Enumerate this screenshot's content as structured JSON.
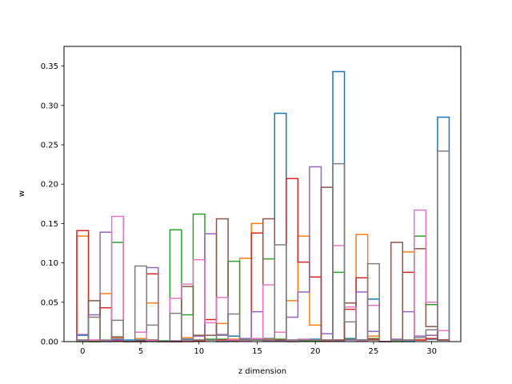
{
  "chart_data": {
    "type": "step",
    "xlabel": "z dimension",
    "ylabel": "w",
    "xlim": [
      -1.6,
      32.5
    ],
    "ylim": [
      0,
      0.375
    ],
    "grid": false,
    "xticks": [
      0,
      5,
      10,
      15,
      20,
      25,
      30
    ],
    "xtick_labels": [
      "0",
      "5",
      "10",
      "15",
      "20",
      "25",
      "30"
    ],
    "yticks": [
      0.0,
      0.05,
      0.1,
      0.15,
      0.2,
      0.25,
      0.3,
      0.35
    ],
    "ytick_labels": [
      "0.00",
      "0.05",
      "0.10",
      "0.15",
      "0.20",
      "0.25",
      "0.30",
      "0.35"
    ],
    "series": [
      {
        "color": "#1f77b4",
        "values": [
          0.008,
          0,
          0,
          0.003,
          0.002,
          0.002,
          0.001,
          0,
          0,
          0.003,
          0.002,
          0.002,
          0,
          0.007,
          0.002,
          0.003,
          0.004,
          0.29,
          0.002,
          0.002,
          0.003,
          0.002,
          0.343,
          0.004,
          0.002,
          0.054,
          0,
          0.002,
          0,
          0.002,
          0.003,
          0.285
        ]
      },
      {
        "color": "#ff7f0e",
        "values": [
          0.134,
          0,
          0.061,
          0.005,
          0,
          0.004,
          0.049,
          0,
          0,
          0.005,
          0.002,
          0.002,
          0.023,
          0.003,
          0.106,
          0.15,
          0.003,
          0.002,
          0.052,
          0.134,
          0.021,
          0.002,
          0.002,
          0.002,
          0.136,
          0.007,
          0,
          0.002,
          0.114,
          0.002,
          0.008,
          0.002
        ]
      },
      {
        "color": "#2ca02c",
        "values": [
          0,
          0,
          0.001,
          0.126,
          0,
          0.001,
          0,
          0.001,
          0.142,
          0.034,
          0.162,
          0.003,
          0.003,
          0.102,
          0.003,
          0.002,
          0.105,
          0.003,
          0,
          0.001,
          0.001,
          0.002,
          0.088,
          0.003,
          0.002,
          0.004,
          0,
          0,
          0.002,
          0.134,
          0.047,
          0.002
        ]
      },
      {
        "color": "#d62728",
        "values": [
          0.141,
          0.002,
          0.043,
          0.001,
          0,
          0,
          0.086,
          0,
          0,
          0,
          0.001,
          0.028,
          0.002,
          0.002,
          0.001,
          0.138,
          0.002,
          0.002,
          0.207,
          0.101,
          0.082,
          0.001,
          0.001,
          0.041,
          0.081,
          0.003,
          0,
          0.002,
          0.088,
          0.002,
          0.004,
          0.002
        ]
      },
      {
        "color": "#9467bd",
        "values": [
          0.009,
          0.034,
          0.139,
          0.002,
          0,
          0,
          0.094,
          0,
          0.001,
          0.002,
          0.007,
          0.137,
          0.009,
          0.002,
          0.004,
          0.038,
          0.001,
          0.001,
          0.031,
          0.063,
          0.222,
          0.01,
          0.001,
          0.002,
          0.063,
          0.013,
          0,
          0.003,
          0.038,
          0.007,
          0.008,
          0.002
        ]
      },
      {
        "color": "#8c564b",
        "values": [
          0.002,
          0.052,
          0.001,
          0.006,
          0,
          0.001,
          0.002,
          0,
          0,
          0.07,
          0.008,
          0.008,
          0.156,
          0.001,
          0.001,
          0.002,
          0.156,
          0.002,
          0.001,
          0.002,
          0.002,
          0.196,
          0.002,
          0.049,
          0.002,
          0.002,
          0,
          0.126,
          0.002,
          0.118,
          0.019,
          0.002
        ]
      },
      {
        "color": "#e377c2",
        "values": [
          0.001,
          0.002,
          0.001,
          0.159,
          0,
          0.012,
          0.001,
          0,
          0.055,
          0.073,
          0.104,
          0.024,
          0.056,
          0.002,
          0.001,
          0.004,
          0.072,
          0.012,
          0.001,
          0.003,
          0.002,
          0.002,
          0.122,
          0.044,
          0.001,
          0.046,
          0,
          0.002,
          0.002,
          0.167,
          0.05,
          0.014
        ]
      },
      {
        "color": "#7f7f7f",
        "values": [
          0.002,
          0.031,
          0.002,
          0.027,
          0,
          0.096,
          0.021,
          0,
          0.036,
          0.002,
          0.002,
          0.002,
          0.008,
          0.035,
          0.002,
          0.002,
          0.002,
          0.123,
          0.002,
          0.002,
          0.002,
          0.002,
          0.226,
          0.025,
          0.002,
          0.099,
          0,
          0.002,
          0.002,
          0.005,
          0.015,
          0.242
        ]
      }
    ]
  }
}
